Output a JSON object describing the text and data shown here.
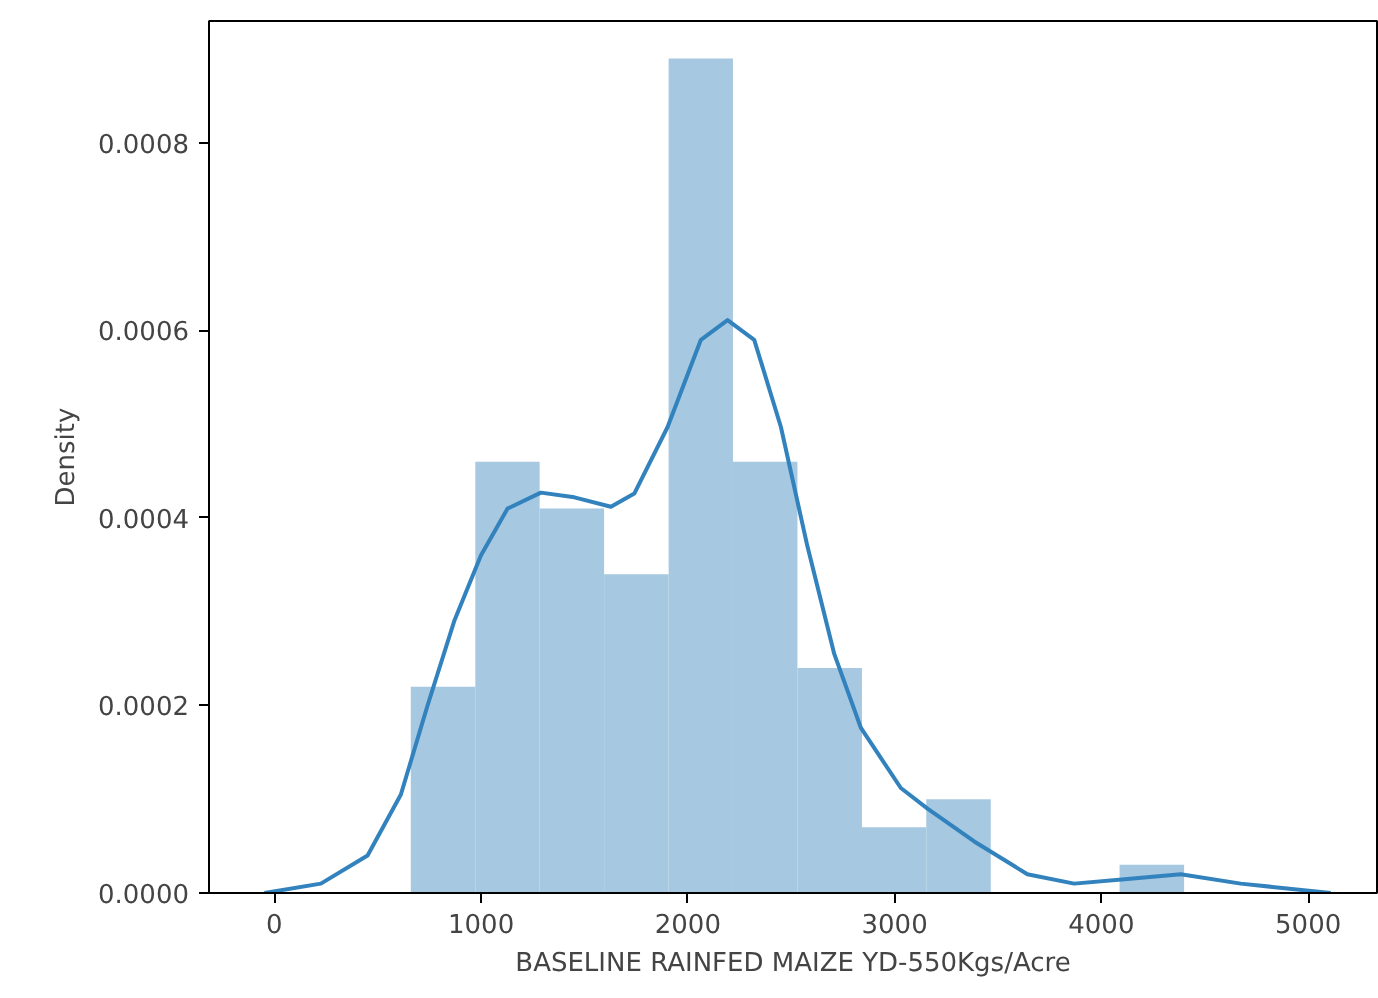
{
  "chart_data": {
    "type": "histogram",
    "xlabel": "BASELINE RAINFED MAIZE YD-550Kgs/Acre",
    "ylabel": "Density",
    "xlim": [
      -316,
      5333
    ],
    "ylim": [
      0,
      0.00093
    ],
    "xticks": [
      0,
      1000,
      2000,
      3000,
      4000,
      5000
    ],
    "yticks": [
      {
        "value": 0,
        "label": "0.0000"
      },
      {
        "value": 0.0002,
        "label": "0.0002"
      },
      {
        "value": 0.0004,
        "label": "0.0004"
      },
      {
        "value": 0.0006,
        "label": "0.0006"
      },
      {
        "value": 0.0008,
        "label": "0.0008"
      }
    ],
    "grid": false,
    "series": [
      {
        "color": "#a6c8e0",
        "bins": [
          660,
          972,
          1283,
          1595,
          1907,
          2218,
          2530,
          2842,
          3153,
          3465,
          3777,
          4088,
          4400
        ],
        "values": [
          0.00022,
          0.00046,
          0.00041,
          0.00034,
          0.00089,
          0.00046,
          0.00024,
          7e-05,
          0.0001,
          0,
          0,
          3e-05
        ]
      },
      {
        "type": "line",
        "color": "#3282bd",
        "x": [
          -48,
          225,
          451,
          612,
          741,
          870,
          999,
          1128,
          1289,
          1451,
          1628,
          1741,
          1902,
          2063,
          2192,
          2321,
          2450,
          2578,
          2708,
          2837,
          3030,
          3159,
          3385,
          3642,
          3868,
          4126,
          4384,
          4674,
          5109
        ],
        "values": [
          0,
          1e-05,
          4e-05,
          0.000105,
          0.0002,
          0.00029,
          0.00036,
          0.00041,
          0.000427,
          0.000422,
          0.000412,
          0.000426,
          0.000497,
          0.00059,
          0.000611,
          0.00059,
          0.000497,
          0.00037,
          0.000255,
          0.000176,
          0.000112,
          9e-05,
          5.5e-05,
          2e-05,
          1e-05,
          1.5e-05,
          2e-05,
          1e-05,
          0
        ]
      }
    ]
  }
}
